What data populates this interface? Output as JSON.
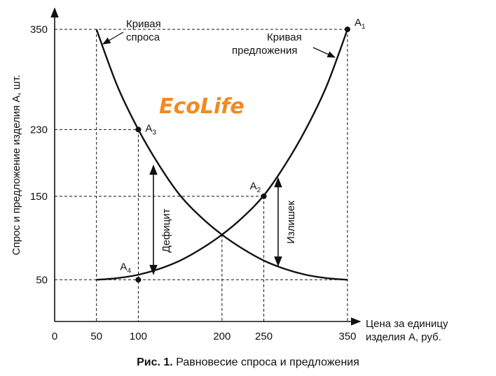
{
  "chart_data": {
    "type": "line",
    "xlabel": "Цена за единицу изделия А, руб.",
    "ylabel": "Спрос и предложение изделия А, шт.",
    "xlim": [
      0,
      370
    ],
    "ylim": [
      0,
      370
    ],
    "x_ticks": [
      0,
      50,
      100,
      200,
      250,
      350
    ],
    "y_ticks": [
      50,
      150,
      230,
      350
    ],
    "series": [
      {
        "name": "Кривая спроса",
        "x": [
          50,
          75,
          100,
          125,
          150,
          175,
          200,
          225,
          250,
          275,
          300,
          325,
          350
        ],
        "y": [
          350,
          282,
          230,
          187,
          151,
          125,
          104,
          87,
          73,
          63,
          56,
          52,
          50
        ]
      },
      {
        "name": "Кривая предложения",
        "x": [
          50,
          75,
          100,
          125,
          150,
          175,
          200,
          225,
          250,
          275,
          300,
          325,
          350
        ],
        "y": [
          50,
          52,
          56,
          63,
          73,
          87,
          104,
          125,
          151,
          187,
          230,
          282,
          350
        ]
      }
    ],
    "points": [
      {
        "label": "A",
        "sub": "1",
        "x": 350,
        "y": 350
      },
      {
        "label": "A",
        "sub": "2",
        "x": 250,
        "y": 150
      },
      {
        "label": "A",
        "sub": "3",
        "x": 100,
        "y": 230
      },
      {
        "label": "A",
        "sub": "4",
        "x": 100,
        "y": 50
      }
    ],
    "annotations": {
      "demand_label": [
        "Кривая",
        "спроса"
      ],
      "supply_label": [
        "Кривая",
        "предложения"
      ],
      "deficit": "Дефицит",
      "surplus": "Излишек"
    },
    "watermark": "EcoLife",
    "caption_bold": "Рис. 1.",
    "caption_rest": " Равновесие спроса и предложения"
  }
}
